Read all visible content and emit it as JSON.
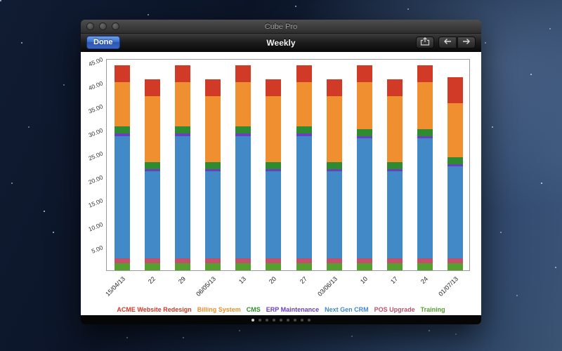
{
  "window": {
    "title": "Cube Pro",
    "toolbar": {
      "done_label": "Done",
      "title": "Weekly"
    }
  },
  "bottom_bar": {
    "dot_count": 9,
    "active_index": 0
  },
  "chart_data": {
    "type": "bar",
    "stacked": true,
    "title": "Weekly",
    "xlabel": "",
    "ylabel": "",
    "ylim": [
      0,
      45
    ],
    "grid": false,
    "legend_position": "bottom",
    "yticks": [
      "5.00",
      "10.00",
      "15.00",
      "20.00",
      "25.00",
      "30.00",
      "35.00",
      "40.00",
      "45.00"
    ],
    "categories": [
      "15/04/13",
      "22",
      "29",
      "06/05/13",
      "13",
      "20",
      "27",
      "03/06/13",
      "10",
      "17",
      "24",
      "01/07/13"
    ],
    "series": [
      {
        "name": "Training",
        "color": "#55a02e",
        "values": [
          1.5,
          1.5,
          1.5,
          1.5,
          1.5,
          1.5,
          1.5,
          1.5,
          1.5,
          1.5,
          1.5,
          1.5
        ]
      },
      {
        "name": "POS Upgrade",
        "color": "#c2506a",
        "values": [
          1,
          1,
          1,
          1,
          1,
          1,
          1,
          1,
          1,
          1,
          1,
          1
        ]
      },
      {
        "name": "Next Gen CRM",
        "color": "#4189c7",
        "values": [
          26,
          18.5,
          26,
          18.5,
          26,
          18.5,
          26,
          18.5,
          25.5,
          18.5,
          25.5,
          19.5
        ]
      },
      {
        "name": "ERP Maintenance",
        "color": "#6a3fc0",
        "values": [
          0.5,
          0.5,
          0.5,
          0.5,
          0.5,
          0.5,
          0.5,
          0.5,
          0.5,
          0.5,
          0.5,
          0.5
        ]
      },
      {
        "name": "CMS",
        "color": "#2e8b32",
        "values": [
          1.5,
          1.5,
          1.5,
          1.5,
          1.5,
          1.5,
          1.5,
          1.5,
          1.5,
          1.5,
          1.5,
          1.5
        ]
      },
      {
        "name": "Billing System",
        "color": "#ef8f2f",
        "values": [
          9.5,
          14,
          9.5,
          14,
          9.5,
          14,
          9.5,
          14,
          10,
          14,
          10,
          11.5
        ]
      },
      {
        "name": "ACME Website Redesign",
        "color": "#d13a27",
        "values": [
          3.5,
          3.5,
          3.5,
          3.5,
          3.5,
          3.5,
          3.5,
          3.5,
          3.5,
          3.5,
          3.5,
          5.5
        ]
      }
    ],
    "legend": [
      {
        "label": "ACME Website Redesign",
        "color": "#d13a27"
      },
      {
        "label": "Billing System",
        "color": "#ef8f2f"
      },
      {
        "label": "CMS",
        "color": "#2e8b32"
      },
      {
        "label": "ERP Maintenance",
        "color": "#6a3fc0"
      },
      {
        "label": "Next Gen CRM",
        "color": "#4189c7"
      },
      {
        "label": "POS Upgrade",
        "color": "#c2506a"
      },
      {
        "label": "Training",
        "color": "#55a02e"
      }
    ]
  }
}
